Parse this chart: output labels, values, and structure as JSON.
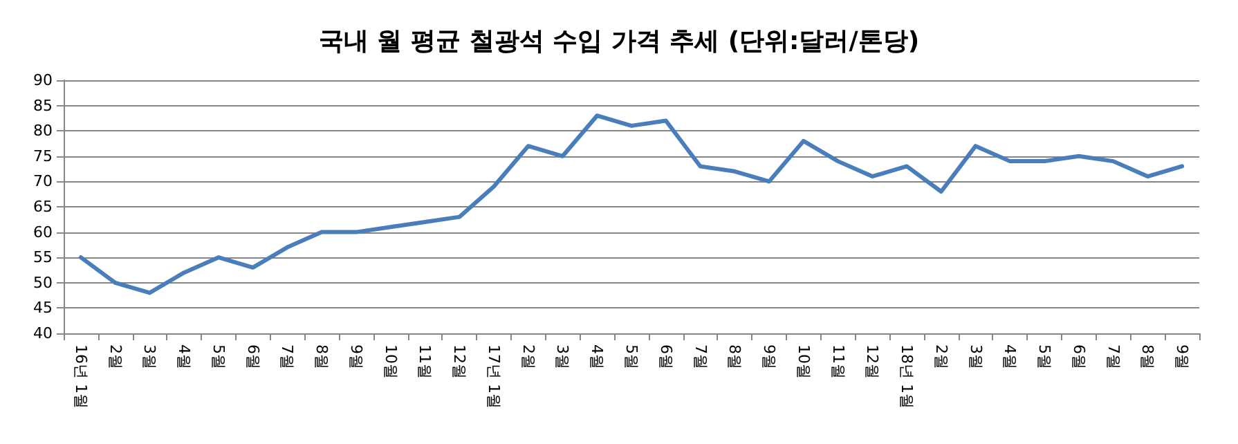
{
  "chart_data": {
    "type": "line",
    "title": "국내 월 평균 철광석 수입 가격 추세 (단위:달러/톤당)",
    "categories": [
      "16년 1월",
      "2월",
      "3월",
      "4월",
      "5월",
      "6월",
      "7월",
      "8월",
      "9월",
      "10월",
      "11월",
      "12월",
      "17년 1월",
      "2월",
      "3월",
      "4월",
      "5월",
      "6월",
      "7월",
      "8월",
      "9월",
      "10월",
      "11월",
      "12월",
      "18년 1월",
      "2월",
      "3월",
      "4월",
      "5월",
      "6월",
      "7월",
      "8월",
      "9월"
    ],
    "series": [
      {
        "color": "#4a7ebb",
        "values": [
          55,
          50,
          48,
          52,
          55,
          53,
          57,
          60,
          60,
          61,
          62,
          63,
          69,
          77,
          75,
          83,
          81,
          82,
          73,
          72,
          70,
          78,
          74,
          71,
          73,
          68,
          77,
          74,
          74,
          75,
          74,
          71,
          73
        ]
      }
    ],
    "ylim": [
      40,
      90
    ],
    "yticks": [
      40,
      45,
      50,
      55,
      60,
      65,
      70,
      75,
      80,
      85,
      90
    ],
    "grid": "y",
    "marker": "none",
    "line_style": "solid"
  }
}
